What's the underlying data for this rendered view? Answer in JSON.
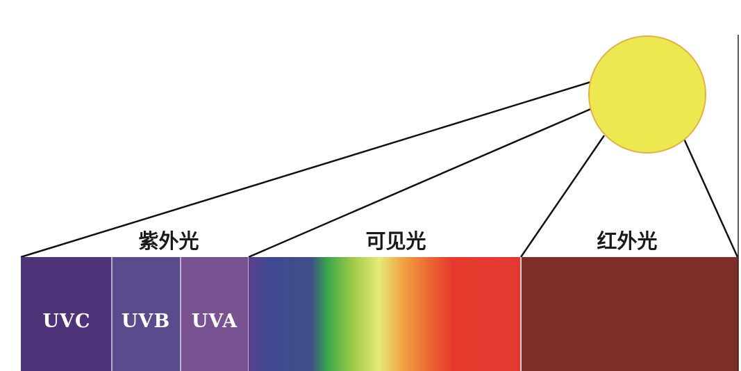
{
  "sections": {
    "ultraviolet": {
      "label": "紫外光"
    },
    "visible": {
      "label": "可见光"
    },
    "infrared": {
      "label": "红外光"
    }
  },
  "uv_bands": [
    {
      "label": "UVC",
      "color": "#4f3378"
    },
    {
      "label": "UVB",
      "color": "#5a4c8c"
    },
    {
      "label": "UVA",
      "color": "#795391"
    }
  ],
  "visible_gradient": [
    "#5a3f8c",
    "#3f4a92",
    "#3f4e86",
    "#3aa64a",
    "#9bc948",
    "#e7ea79",
    "#f0a744",
    "#ec6a32",
    "#e63a2e",
    "#e23a30"
  ],
  "infrared_color": "#7d2e27",
  "sun_color": "#ebe94f",
  "sun_outline": "#e3b04a"
}
